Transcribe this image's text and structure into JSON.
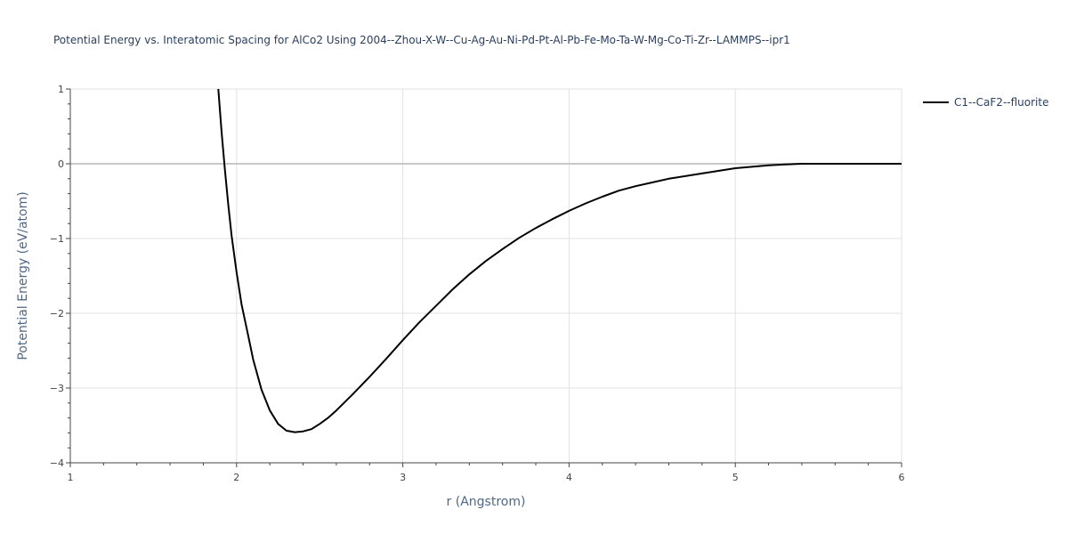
{
  "chart_data": {
    "type": "line",
    "title": "Potential Energy vs. Interatomic Spacing for AlCo2 Using 2004--Zhou-X-W--Cu-Ag-Au-Ni-Pd-Pt-Al-Pb-Fe-Mo-Ta-W-Mg-Co-Ti-Zr--LAMMPS--ipr1",
    "xlabel": "r (Angstrom)",
    "ylabel": "Potential Energy (eV/atom)",
    "xlim": [
      1,
      6
    ],
    "ylim": [
      -4,
      1
    ],
    "x_ticks": [
      1,
      2,
      3,
      4,
      5,
      6
    ],
    "y_ticks": [
      1,
      0,
      -1,
      -2,
      -3,
      -4
    ],
    "x_tick_labels": [
      "1",
      "2",
      "3",
      "4",
      "5",
      "6"
    ],
    "y_tick_labels": [
      "1",
      "0",
      "−1",
      "−2",
      "−3",
      "−4"
    ],
    "grid": true,
    "legend_position": "top-right",
    "series": [
      {
        "name": "C1--CaF2--fluorite",
        "color": "#000000",
        "x": [
          1.89,
          1.91,
          1.93,
          1.95,
          1.97,
          2.0,
          2.03,
          2.07,
          2.1,
          2.15,
          2.2,
          2.25,
          2.3,
          2.35,
          2.4,
          2.45,
          2.5,
          2.55,
          2.6,
          2.7,
          2.8,
          2.9,
          3.0,
          3.1,
          3.2,
          3.3,
          3.4,
          3.5,
          3.6,
          3.7,
          3.8,
          3.9,
          4.0,
          4.1,
          4.2,
          4.3,
          4.4,
          4.5,
          4.6,
          4.8,
          5.0,
          5.1,
          5.2,
          5.3,
          5.4,
          5.5,
          5.6,
          5.8,
          6.0
        ],
        "y": [
          1.0,
          0.42,
          -0.08,
          -0.55,
          -0.96,
          -1.45,
          -1.88,
          -2.3,
          -2.62,
          -3.02,
          -3.3,
          -3.48,
          -3.57,
          -3.59,
          -3.58,
          -3.55,
          -3.48,
          -3.4,
          -3.3,
          -3.08,
          -2.85,
          -2.61,
          -2.36,
          -2.12,
          -1.9,
          -1.68,
          -1.48,
          -1.3,
          -1.14,
          -0.99,
          -0.86,
          -0.74,
          -0.63,
          -0.53,
          -0.44,
          -0.36,
          -0.3,
          -0.25,
          -0.2,
          -0.13,
          -0.06,
          -0.04,
          -0.02,
          -0.01,
          0.0,
          0.0,
          0.0,
          0.0,
          0.0
        ]
      }
    ]
  }
}
